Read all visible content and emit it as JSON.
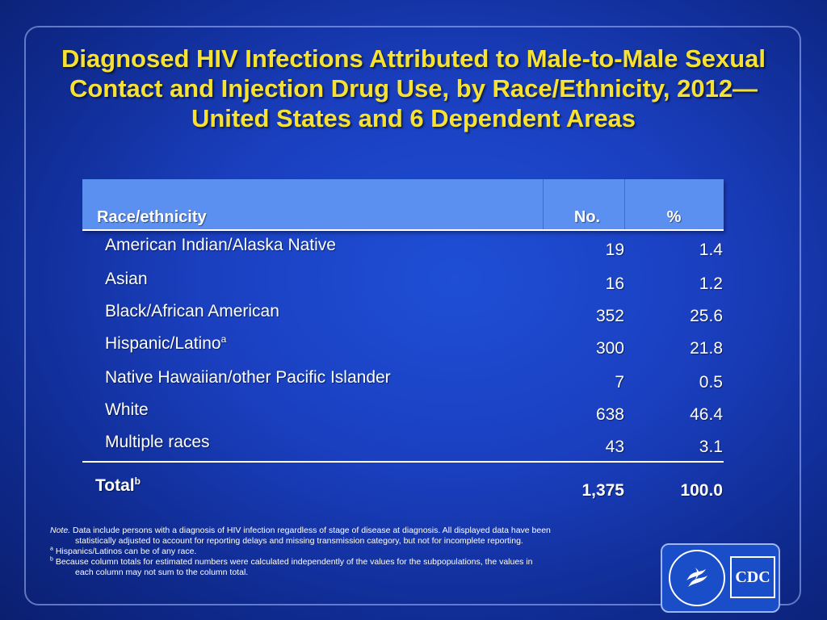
{
  "title": {
    "line1": "Diagnosed HIV Infections Attributed to Male-to-Male Sexual",
    "line2": "Contact and Injection Drug Use, by Race/Ethnicity, 2012—",
    "line3": "United States and 6 Dependent Areas"
  },
  "table": {
    "headers": {
      "race": "Race/ethnicity",
      "no": "No.",
      "pct": "%"
    },
    "rows": [
      {
        "name": "American Indian/Alaska Native",
        "sup": "",
        "no": "19",
        "pct": "1.4"
      },
      {
        "name": "Asian",
        "sup": "",
        "no": "16",
        "pct": "1.2"
      },
      {
        "name": "Black/African American",
        "sup": "",
        "no": "352",
        "pct": "25.6"
      },
      {
        "name": "Hispanic/Latino",
        "sup": "a",
        "no": "300",
        "pct": "21.8"
      },
      {
        "name": "Native Hawaiian/other Pacific Islander",
        "sup": "",
        "no": "7",
        "pct": "0.5"
      },
      {
        "name": "White",
        "sup": "",
        "no": "638",
        "pct": "46.4"
      },
      {
        "name": "Multiple races",
        "sup": "",
        "no": "43",
        "pct": "3.1"
      }
    ],
    "total": {
      "name": "Total",
      "sup": "b",
      "no": "1,375",
      "pct": "100.0"
    }
  },
  "notes": {
    "note_label": "Note.",
    "note_text_1": " Data include persons with a diagnosis of HIV infection regardless of stage of disease at diagnosis. All displayed data have been",
    "note_text_2": "statistically adjusted to account for reporting delays  and missing transmission category, but not for incomplete reporting.",
    "footnote_a_mark": "a",
    "footnote_a": " Hispanics/Latinos can be of any race.",
    "footnote_b_mark": "b",
    "footnote_b_1": "Because column totals for estimated numbers were calculated independently of the values for the subpopulations, the values in",
    "footnote_b_2": "each column may not sum to the column total."
  },
  "logo": {
    "text": "CDC"
  }
}
